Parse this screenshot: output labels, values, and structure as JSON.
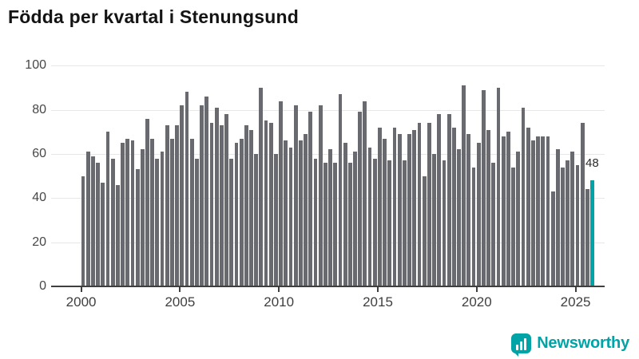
{
  "title": "Födda per kvartal i Stenungsund",
  "brand": {
    "name": "Newsworthy",
    "color": "#00a4a6"
  },
  "colors": {
    "bar": "#696a70",
    "highlight": "#00a4a6",
    "gridline": "#e7e7e7",
    "axis": "#3f3f3f"
  },
  "chart_data": {
    "type": "bar",
    "title": "Födda per kvartal i Stenungsund",
    "frequency": "quarterly",
    "x_start": "2000-Q1",
    "x_end": "2025-Q4",
    "ylim": [
      0,
      100
    ],
    "yticks": [
      0,
      20,
      40,
      60,
      80,
      100
    ],
    "xticks": [
      2000,
      2005,
      2010,
      2015,
      2020,
      2025
    ],
    "grid": "horizontal",
    "bar_color": "#696a70",
    "values": [
      50,
      61,
      59,
      56,
      47,
      70,
      58,
      46,
      65,
      67,
      66,
      53,
      62,
      76,
      67,
      58,
      61,
      73,
      67,
      73,
      82,
      88,
      67,
      58,
      82,
      86,
      74,
      81,
      73,
      78,
      58,
      65,
      67,
      73,
      71,
      60,
      90,
      75,
      74,
      60,
      84,
      66,
      63,
      82,
      66,
      69,
      79,
      58,
      82,
      56,
      62,
      56,
      87,
      65,
      56,
      61,
      79,
      84,
      63,
      58,
      72,
      67,
      57,
      72,
      69,
      57,
      69,
      71,
      74,
      50,
      74,
      60,
      78,
      57,
      78,
      72,
      62,
      91,
      69,
      54,
      65,
      89,
      71,
      56,
      90,
      68,
      70,
      54,
      61,
      81,
      72,
      66,
      68,
      68,
      68,
      43,
      62,
      54,
      57,
      61,
      55,
      74,
      44,
      48
    ],
    "highlight": {
      "index": 103,
      "label": "48",
      "color": "#00a4a6"
    }
  }
}
